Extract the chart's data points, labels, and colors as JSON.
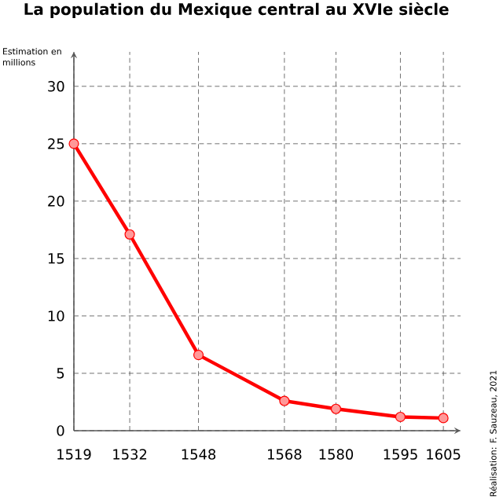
{
  "chart_data": {
    "type": "line",
    "title": "La population du Mexique central au XVIe siècle",
    "ylabel": "Estimation en millions",
    "x": [
      1519,
      1532,
      1548,
      1568,
      1580,
      1595,
      1605
    ],
    "series": [
      {
        "color": "#ff0000",
        "values": [
          25,
          17.1,
          6.6,
          2.6,
          1.9,
          1.2,
          1.1
        ]
      }
    ],
    "xlim": [
      1519,
      1609
    ],
    "ylim": [
      0,
      33
    ],
    "xticks": [
      1519,
      1532,
      1548,
      1568,
      1580,
      1595,
      1605
    ],
    "yticks": [
      0,
      5,
      10,
      15,
      20,
      25,
      30
    ],
    "grid": true,
    "marker": "circle",
    "line_style": "solid",
    "annotations": [
      "Réalisation: F. Sauzeau, 2021"
    ]
  }
}
